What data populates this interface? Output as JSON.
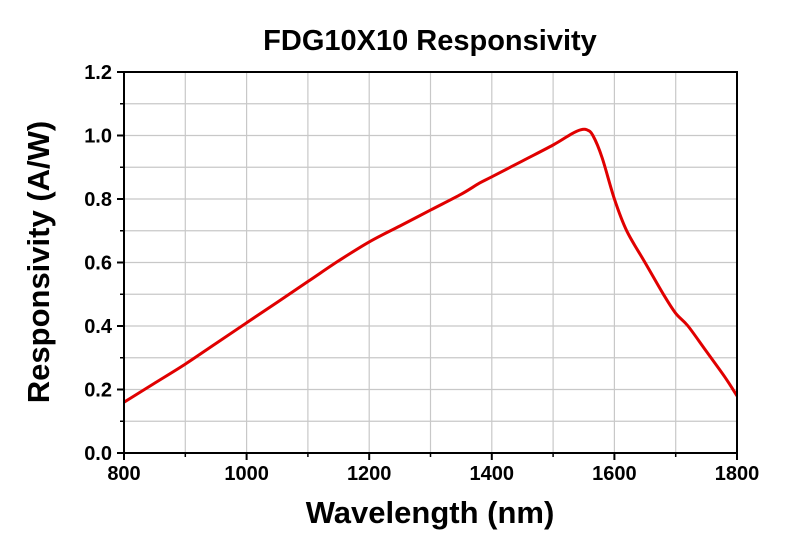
{
  "chart_data": {
    "type": "line",
    "title": "FDG10X10 Responsivity",
    "xlabel": "Wavelength (nm)",
    "ylabel": "Responsivity (A/W)",
    "xlim": [
      800,
      1800
    ],
    "ylim": [
      0.0,
      1.2
    ],
    "x_ticks": [
      800,
      1000,
      1200,
      1400,
      1600,
      1800
    ],
    "y_ticks": [
      "0.0",
      "0.2",
      "0.4",
      "0.6",
      "0.8",
      "1.0",
      "1.2"
    ],
    "grid": true,
    "line_color": "#e00000",
    "series": [
      {
        "name": "Responsivity",
        "x": [
          800,
          850,
          900,
          950,
          1000,
          1050,
          1100,
          1150,
          1200,
          1250,
          1300,
          1350,
          1380,
          1400,
          1450,
          1500,
          1530,
          1545,
          1555,
          1565,
          1580,
          1600,
          1620,
          1650,
          1680,
          1700,
          1720,
          1750,
          1780,
          1800
        ],
        "y": [
          0.16,
          0.22,
          0.28,
          0.345,
          0.41,
          0.475,
          0.54,
          0.605,
          0.665,
          0.715,
          0.765,
          0.815,
          0.85,
          0.87,
          0.92,
          0.97,
          1.005,
          1.018,
          1.018,
          1.0,
          0.93,
          0.8,
          0.7,
          0.6,
          0.5,
          0.44,
          0.4,
          0.32,
          0.24,
          0.18
        ]
      }
    ]
  }
}
